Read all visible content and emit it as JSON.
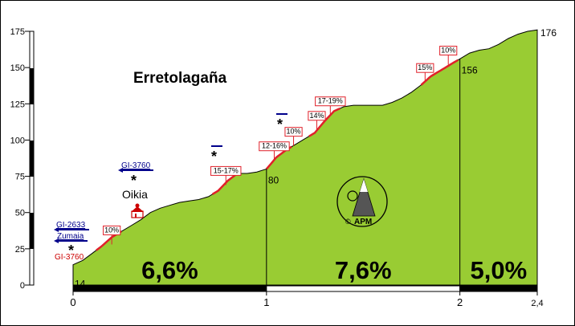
{
  "chart_data": {
    "type": "area",
    "title": "Erretolagaña",
    "xlabel": "",
    "ylabel": "",
    "xlim": [
      0,
      2.4
    ],
    "ylim": [
      0,
      175
    ],
    "grid": false,
    "fill_color": "#99cc33",
    "line_color": "#000000",
    "steep_color": "#e0202a",
    "x_ticks": [
      "0",
      "1",
      "2",
      "2,4"
    ],
    "y_ticks": [
      "0",
      "25",
      "50",
      "75",
      "100",
      "125",
      "150",
      "175"
    ],
    "profile": [
      [
        0,
        14
      ],
      [
        0.05,
        17
      ],
      [
        0.1,
        22
      ],
      [
        0.15,
        27
      ],
      [
        0.2,
        33
      ],
      [
        0.25,
        37
      ],
      [
        0.3,
        41
      ],
      [
        0.35,
        45
      ],
      [
        0.4,
        50
      ],
      [
        0.45,
        53
      ],
      [
        0.5,
        55
      ],
      [
        0.55,
        57
      ],
      [
        0.6,
        58
      ],
      [
        0.65,
        59
      ],
      [
        0.7,
        61
      ],
      [
        0.75,
        65
      ],
      [
        0.8,
        72
      ],
      [
        0.85,
        77
      ],
      [
        0.9,
        77
      ],
      [
        0.95,
        78
      ],
      [
        1.0,
        80
      ],
      [
        1.05,
        88
      ],
      [
        1.1,
        93
      ],
      [
        1.15,
        97
      ],
      [
        1.2,
        101
      ],
      [
        1.25,
        105
      ],
      [
        1.3,
        113
      ],
      [
        1.35,
        120
      ],
      [
        1.4,
        123
      ],
      [
        1.45,
        124
      ],
      [
        1.5,
        124
      ],
      [
        1.55,
        124
      ],
      [
        1.6,
        124
      ],
      [
        1.65,
        126
      ],
      [
        1.7,
        129
      ],
      [
        1.75,
        133
      ],
      [
        1.8,
        138
      ],
      [
        1.85,
        144
      ],
      [
        1.9,
        148
      ],
      [
        1.95,
        152
      ],
      [
        2.0,
        156
      ],
      [
        2.05,
        160
      ],
      [
        2.1,
        162
      ],
      [
        2.15,
        163
      ],
      [
        2.2,
        166
      ],
      [
        2.25,
        170
      ],
      [
        2.3,
        173
      ],
      [
        2.35,
        175
      ],
      [
        2.4,
        176
      ]
    ],
    "steep_sections": [
      [
        0.12,
        0.25
      ],
      [
        0.72,
        0.85
      ],
      [
        1.0,
        1.13
      ],
      [
        1.22,
        1.38
      ],
      [
        1.8,
        1.99
      ]
    ],
    "km_dividers": [
      1,
      2
    ],
    "segments": [
      {
        "from": 0,
        "to": 1,
        "gradient": "6,6%",
        "bar_color": "#000000"
      },
      {
        "from": 1,
        "to": 2,
        "gradient": "7,6%",
        "bar_color": "#ffffff"
      },
      {
        "from": 2,
        "to": 2.4,
        "gradient": "5,0%",
        "bar_color": "#000000"
      }
    ],
    "elevation_labels": [
      {
        "x": 0,
        "y": 14,
        "text": "14"
      },
      {
        "x": 1,
        "y": 80,
        "text": "80"
      },
      {
        "x": 2,
        "y": 156,
        "text": "156"
      },
      {
        "x": 2.4,
        "y": 176,
        "text": "176"
      }
    ],
    "gradient_labels": [
      {
        "x": 0.2,
        "y": 28,
        "text": "10%"
      },
      {
        "x": 0.79,
        "y": 69,
        "text": "15-17%"
      },
      {
        "x": 1.04,
        "y": 86,
        "text": "12-16%"
      },
      {
        "x": 1.14,
        "y": 96,
        "text": "10%"
      },
      {
        "x": 1.26,
        "y": 107,
        "text": "14%"
      },
      {
        "x": 1.33,
        "y": 117,
        "text": "17-19%"
      },
      {
        "x": 1.82,
        "y": 140,
        "text": "15%"
      },
      {
        "x": 1.94,
        "y": 152,
        "text": "10%"
      }
    ],
    "annotations": [
      {
        "text": "GI-2633",
        "color": "#00008b",
        "arrow": "left"
      },
      {
        "text": "Zumaia",
        "color": "#00008b",
        "arrow": "left"
      },
      {
        "text": "GI-3760",
        "color": "#cc0000",
        "arrow": "none"
      },
      {
        "text": "GI-3760",
        "color": "#00008b",
        "arrow": "left"
      },
      {
        "text": "Oikia",
        "color": "#000000",
        "arrow": "none"
      }
    ],
    "logo_text": "APM"
  }
}
